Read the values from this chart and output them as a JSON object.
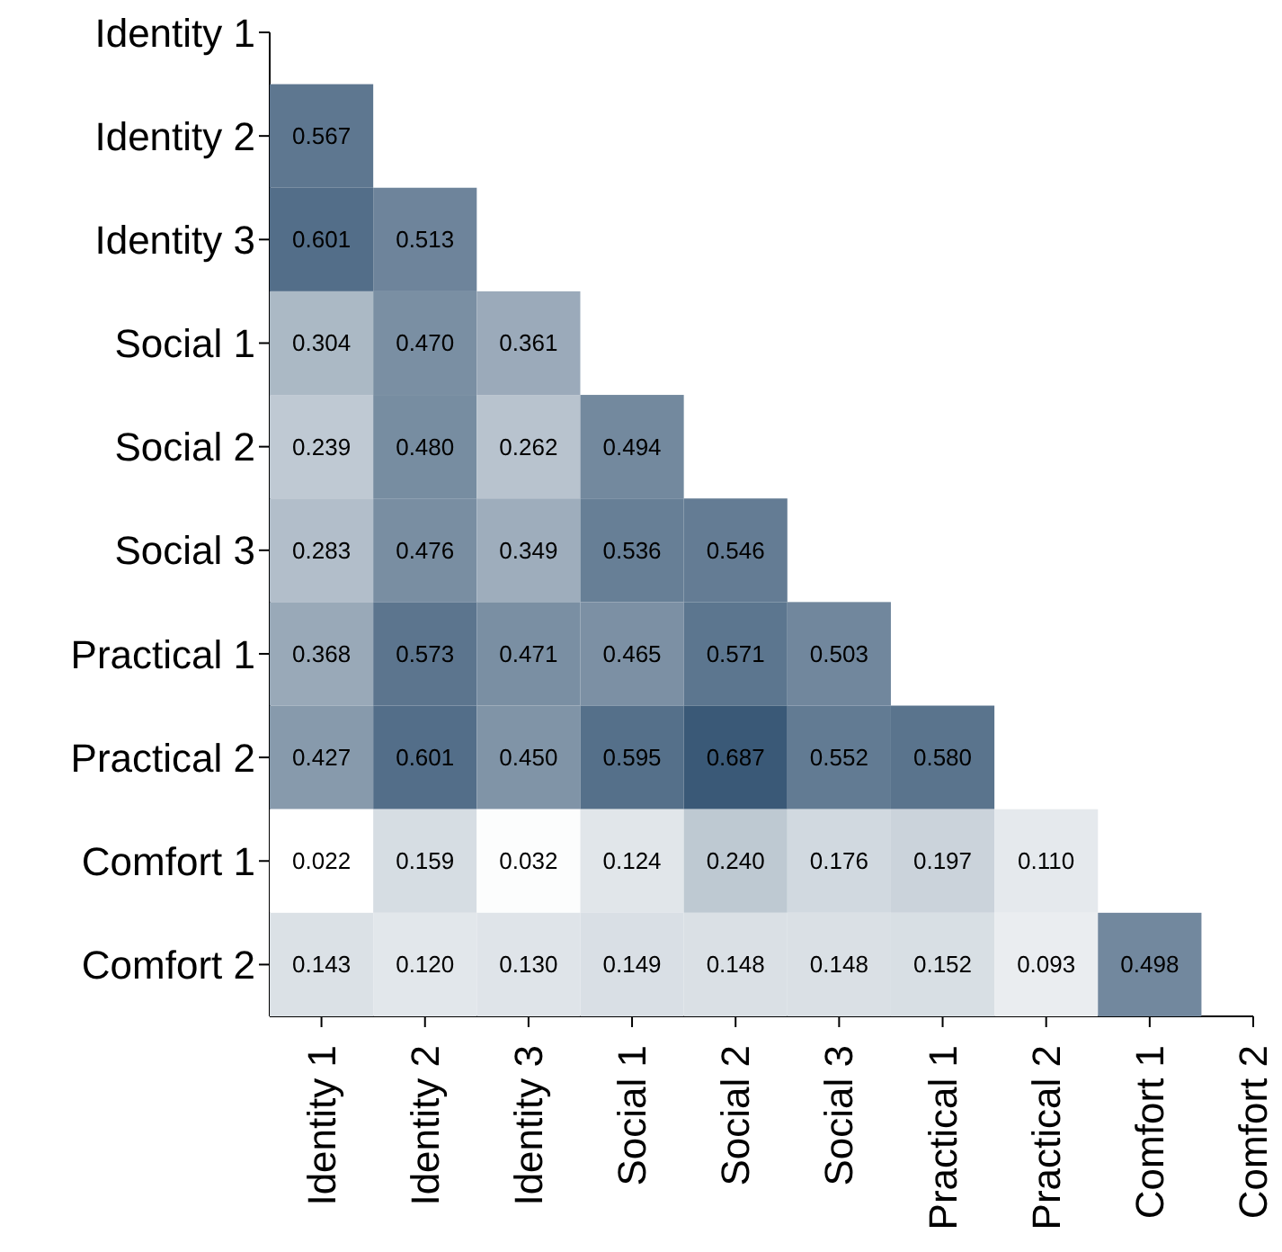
{
  "chart_data": {
    "type": "heatmap",
    "categories": [
      "Identity 1",
      "Identity 2",
      "Identity 3",
      "Social 1",
      "Social 2",
      "Social 3",
      "Practical 1",
      "Practical 2",
      "Comfort 1",
      "Comfort 2"
    ],
    "y_categories": [
      "Identity 1",
      "Identity 2",
      "Identity 3",
      "Social 1",
      "Social 2",
      "Social 3",
      "Practical 1",
      "Practical 2",
      "Comfort 1",
      "Comfort 2"
    ],
    "cells": [
      [
        null,
        null,
        null,
        null,
        null,
        null,
        null,
        null,
        null,
        null
      ],
      [
        0.567,
        null,
        null,
        null,
        null,
        null,
        null,
        null,
        null,
        null
      ],
      [
        0.601,
        0.513,
        null,
        null,
        null,
        null,
        null,
        null,
        null,
        null
      ],
      [
        0.304,
        0.47,
        0.361,
        null,
        null,
        null,
        null,
        null,
        null,
        null
      ],
      [
        0.239,
        0.48,
        0.262,
        0.494,
        null,
        null,
        null,
        null,
        null,
        null
      ],
      [
        0.283,
        0.476,
        0.349,
        0.536,
        0.546,
        null,
        null,
        null,
        null,
        null
      ],
      [
        0.368,
        0.573,
        0.471,
        0.465,
        0.571,
        0.503,
        null,
        null,
        null,
        null
      ],
      [
        0.427,
        0.601,
        0.45,
        0.595,
        0.687,
        0.552,
        0.58,
        null,
        null,
        null
      ],
      [
        0.022,
        0.159,
        0.032,
        0.124,
        0.24,
        0.176,
        0.197,
        0.11,
        null,
        null
      ],
      [
        0.143,
        0.12,
        0.13,
        0.149,
        0.148,
        0.148,
        0.152,
        0.093,
        0.498,
        null
      ]
    ],
    "cell_labels": [
      [
        null,
        null,
        null,
        null,
        null,
        null,
        null,
        null,
        null,
        null
      ],
      [
        "0.567",
        null,
        null,
        null,
        null,
        null,
        null,
        null,
        null,
        null
      ],
      [
        "0.601",
        "0.513",
        null,
        null,
        null,
        null,
        null,
        null,
        null,
        null
      ],
      [
        "0.304",
        "0.470",
        "0.361",
        null,
        null,
        null,
        null,
        null,
        null,
        null
      ],
      [
        "0.239",
        "0.480",
        "0.262",
        "0.494",
        null,
        null,
        null,
        null,
        null,
        null
      ],
      [
        "0.283",
        "0.476",
        "0.349",
        "0.536",
        "0.546",
        null,
        null,
        null,
        null,
        null
      ],
      [
        "0.368",
        "0.573",
        "0.471",
        "0.465",
        "0.571",
        "0.503",
        null,
        null,
        null,
        null
      ],
      [
        "0.427",
        "0.601",
        "0.450",
        "0.595",
        "0.687",
        "0.552",
        "0.580",
        null,
        null,
        null
      ],
      [
        "0.022",
        "0.159",
        "0.032",
        "0.124",
        "0.240",
        "0.176",
        "0.197",
        "0.110",
        null,
        null
      ],
      [
        "0.143",
        "0.120",
        "0.130",
        "0.149",
        "0.148",
        "0.148",
        "0.152",
        "0.093",
        "0.498",
        null
      ]
    ]
  }
}
